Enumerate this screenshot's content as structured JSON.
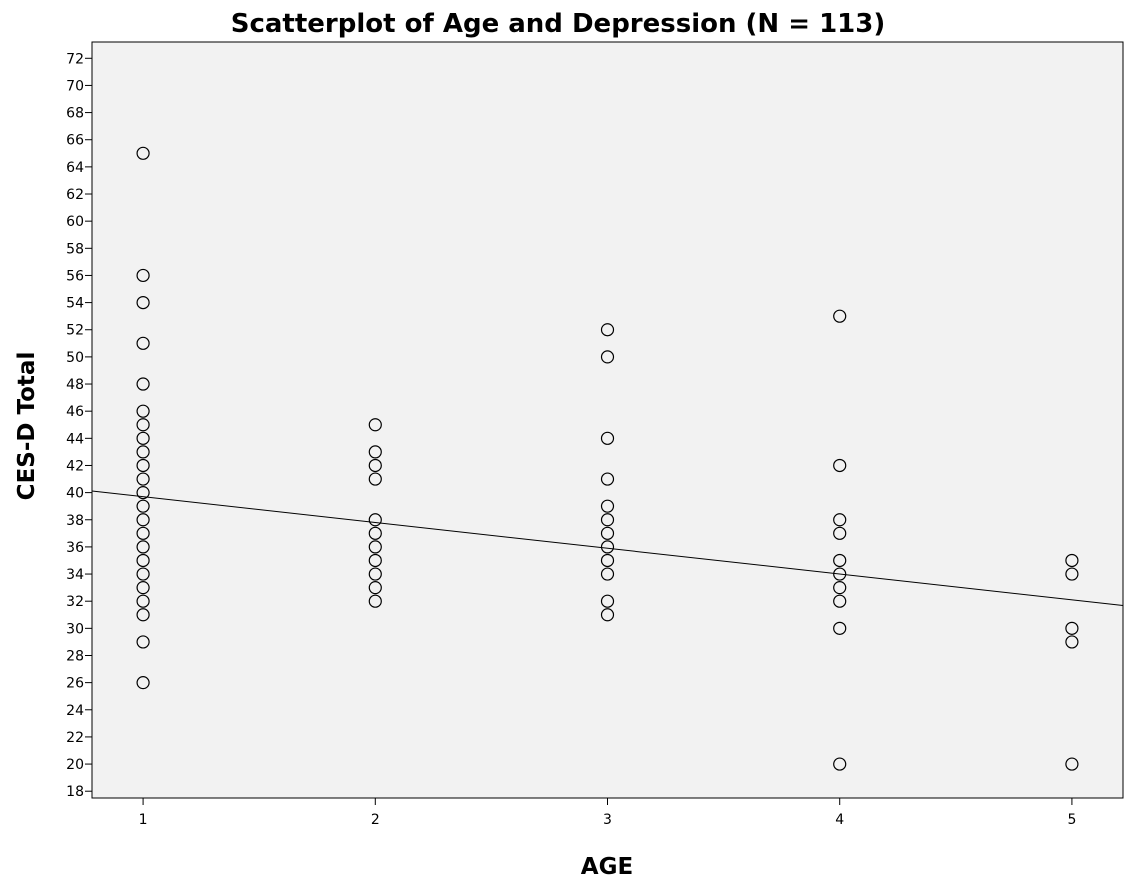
{
  "chart_data": {
    "type": "scatter",
    "title": "Scatterplot of Age and Depression (N = 113)",
    "xlabel": "AGE",
    "ylabel": "CES-D Total",
    "xlim": [
      0.78,
      5.22
    ],
    "ylim": [
      17.5,
      73.2
    ],
    "x_ticks": [
      1,
      2,
      3,
      4,
      5
    ],
    "y_ticks": [
      18,
      20,
      22,
      24,
      26,
      28,
      30,
      32,
      34,
      36,
      38,
      40,
      42,
      44,
      46,
      48,
      50,
      52,
      54,
      56,
      58,
      60,
      62,
      64,
      66,
      68,
      70,
      72
    ],
    "grid": false,
    "legend": "none",
    "marker": "open-circle",
    "points": [
      {
        "x": 1,
        "y": 65
      },
      {
        "x": 1,
        "y": 56
      },
      {
        "x": 1,
        "y": 54
      },
      {
        "x": 1,
        "y": 51
      },
      {
        "x": 1,
        "y": 48
      },
      {
        "x": 1,
        "y": 46
      },
      {
        "x": 1,
        "y": 45
      },
      {
        "x": 1,
        "y": 44
      },
      {
        "x": 1,
        "y": 43
      },
      {
        "x": 1,
        "y": 42
      },
      {
        "x": 1,
        "y": 41
      },
      {
        "x": 1,
        "y": 40
      },
      {
        "x": 1,
        "y": 39
      },
      {
        "x": 1,
        "y": 38
      },
      {
        "x": 1,
        "y": 37
      },
      {
        "x": 1,
        "y": 36
      },
      {
        "x": 1,
        "y": 35
      },
      {
        "x": 1,
        "y": 34
      },
      {
        "x": 1,
        "y": 33
      },
      {
        "x": 1,
        "y": 32
      },
      {
        "x": 1,
        "y": 31
      },
      {
        "x": 1,
        "y": 29
      },
      {
        "x": 1,
        "y": 26
      },
      {
        "x": 2,
        "y": 45
      },
      {
        "x": 2,
        "y": 43
      },
      {
        "x": 2,
        "y": 42
      },
      {
        "x": 2,
        "y": 41
      },
      {
        "x": 2,
        "y": 38
      },
      {
        "x": 2,
        "y": 37
      },
      {
        "x": 2,
        "y": 36
      },
      {
        "x": 2,
        "y": 35
      },
      {
        "x": 2,
        "y": 34
      },
      {
        "x": 2,
        "y": 33
      },
      {
        "x": 2,
        "y": 32
      },
      {
        "x": 3,
        "y": 52
      },
      {
        "x": 3,
        "y": 50
      },
      {
        "x": 3,
        "y": 44
      },
      {
        "x": 3,
        "y": 41
      },
      {
        "x": 3,
        "y": 39
      },
      {
        "x": 3,
        "y": 38
      },
      {
        "x": 3,
        "y": 37
      },
      {
        "x": 3,
        "y": 36
      },
      {
        "x": 3,
        "y": 35
      },
      {
        "x": 3,
        "y": 34
      },
      {
        "x": 3,
        "y": 32
      },
      {
        "x": 3,
        "y": 31
      },
      {
        "x": 4,
        "y": 53
      },
      {
        "x": 4,
        "y": 42
      },
      {
        "x": 4,
        "y": 38
      },
      {
        "x": 4,
        "y": 37
      },
      {
        "x": 4,
        "y": 35
      },
      {
        "x": 4,
        "y": 34
      },
      {
        "x": 4,
        "y": 33
      },
      {
        "x": 4,
        "y": 32
      },
      {
        "x": 4,
        "y": 30
      },
      {
        "x": 4,
        "y": 20
      },
      {
        "x": 5,
        "y": 35
      },
      {
        "x": 5,
        "y": 34
      },
      {
        "x": 5,
        "y": 30
      },
      {
        "x": 5,
        "y": 29
      },
      {
        "x": 5,
        "y": 20
      }
    ],
    "fit_line": {
      "type": "linear",
      "intercept": 41.6,
      "slope": -1.9
    }
  }
}
